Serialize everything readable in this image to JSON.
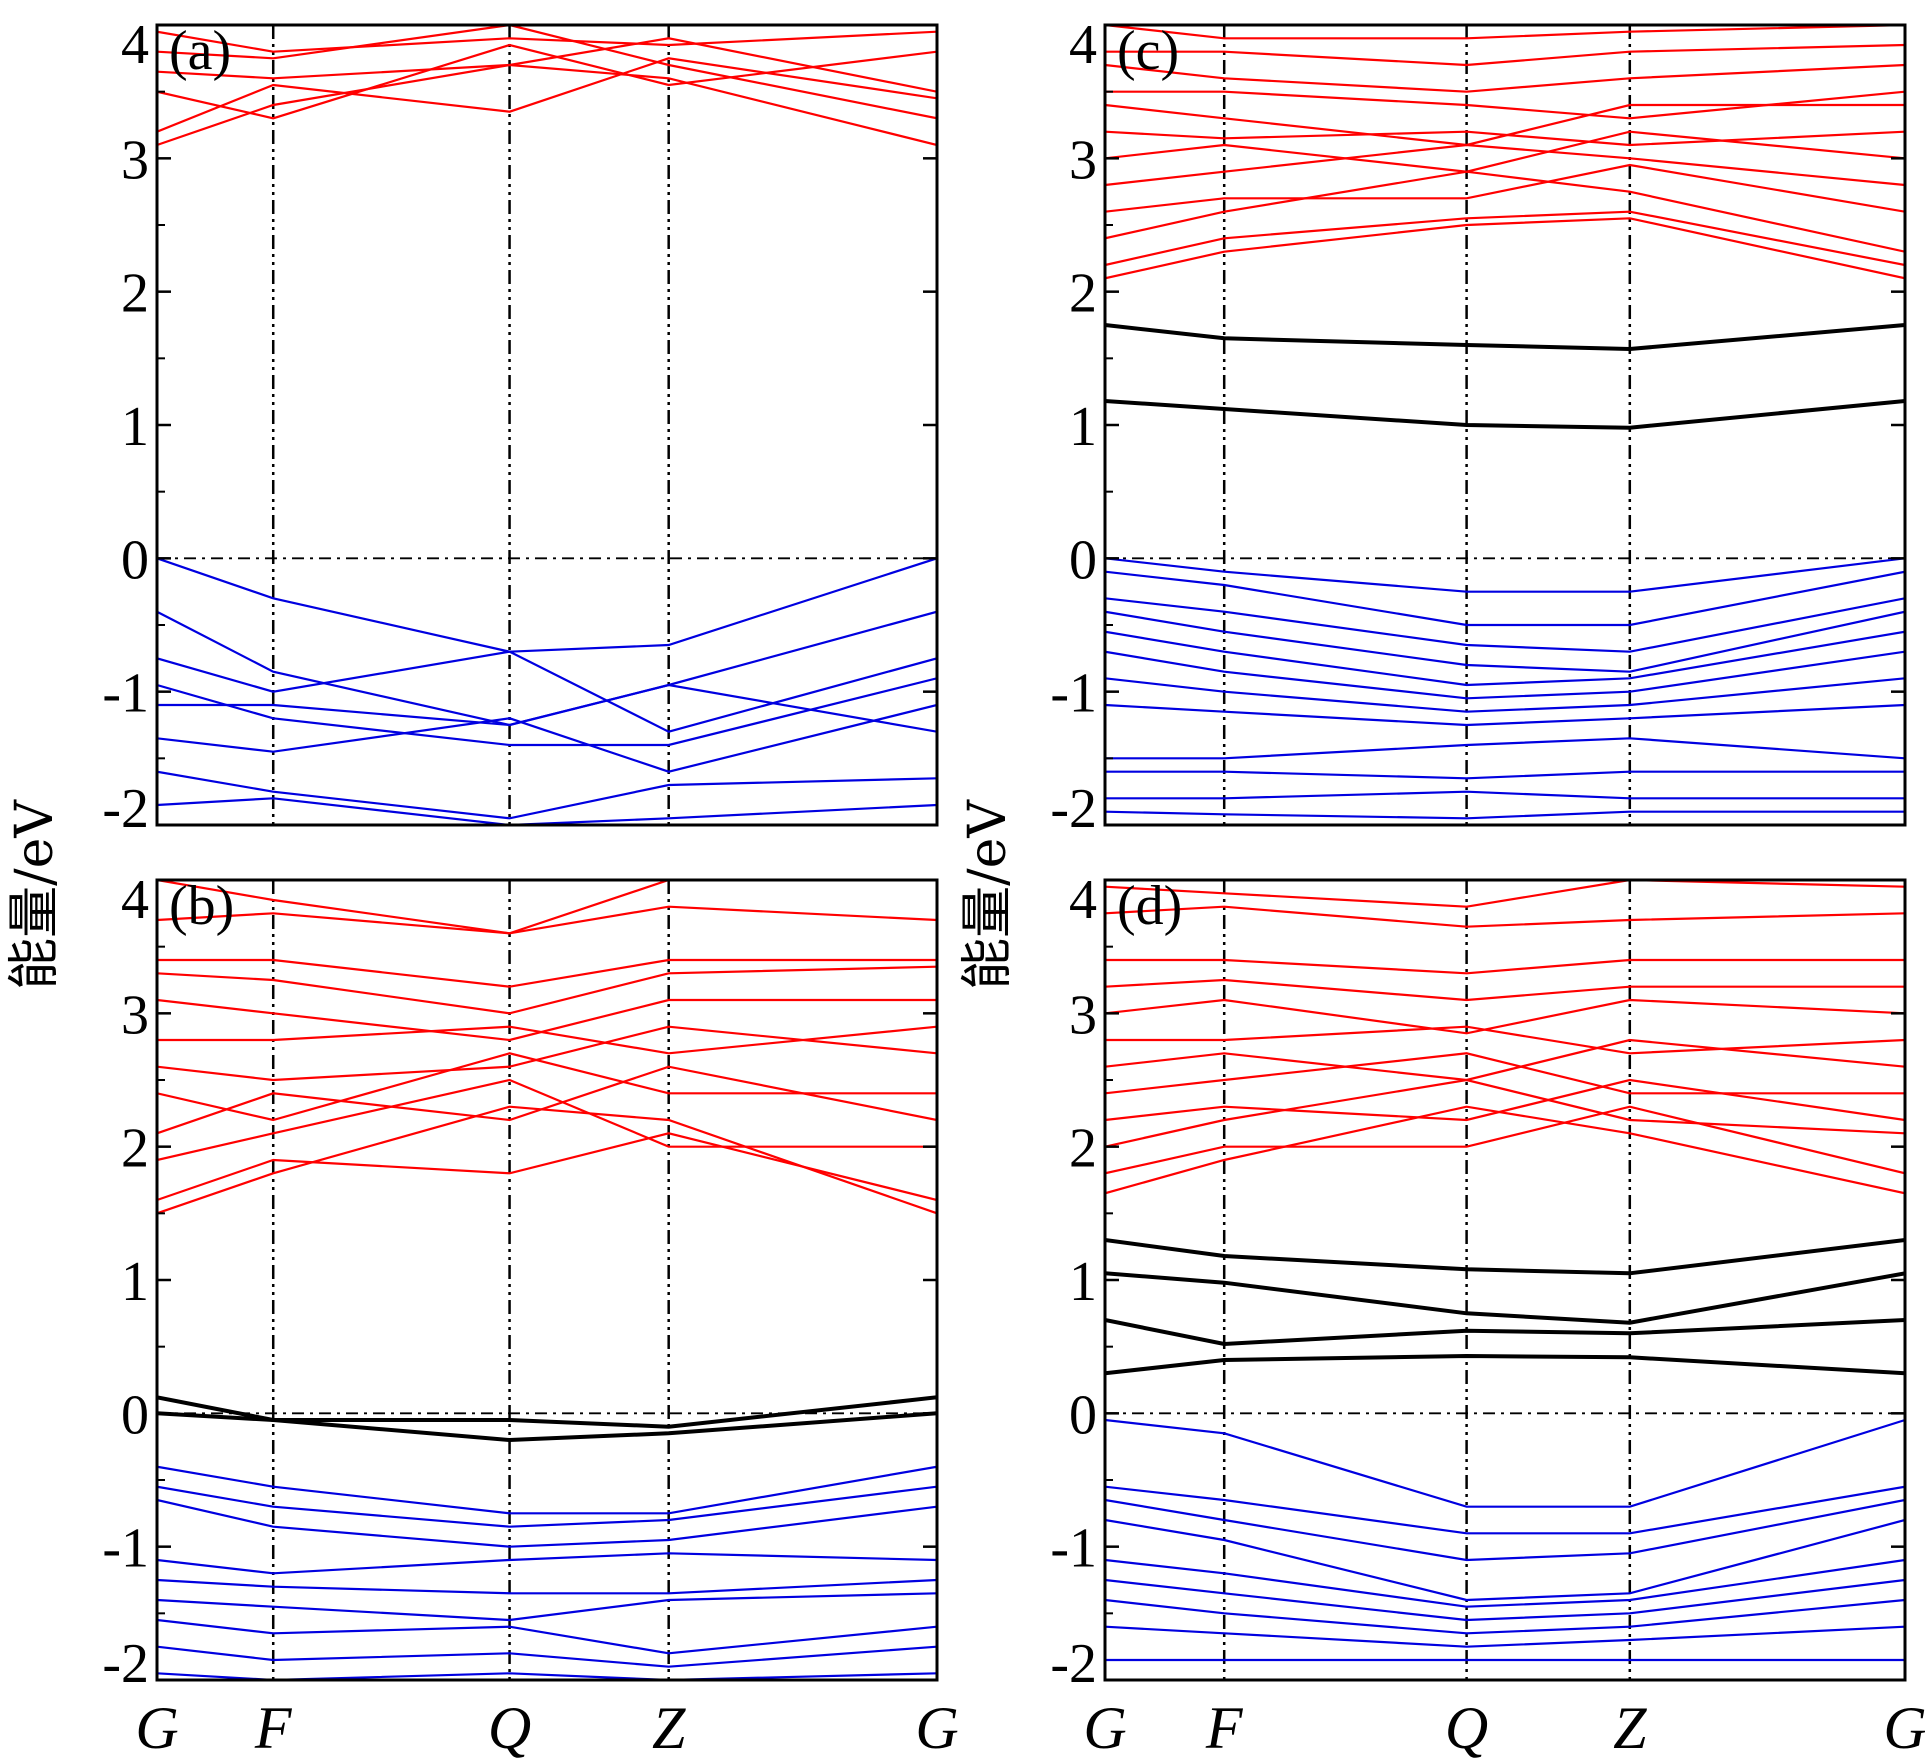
{
  "figure": {
    "ylabel": "能量/eV",
    "kpoint_labels": [
      "G",
      "F",
      "Q",
      "Z",
      "G"
    ]
  },
  "colors": {
    "conduction": "#ff0000",
    "valence": "#0000e0",
    "defect": "#000000"
  },
  "chart_data": [
    {
      "type": "line",
      "panel": "(a)",
      "x": [
        "G",
        "F",
        "Q",
        "Z",
        "G"
      ],
      "ylim": [
        -2,
        4
      ],
      "yticks": [
        -2,
        -1,
        0,
        1,
        2,
        3,
        4
      ],
      "fermi_level": 0,
      "series": [
        {
          "band": "conduction",
          "values": [
            3.1,
            3.4,
            3.7,
            3.6,
            3.1
          ]
        },
        {
          "band": "conduction",
          "values": [
            3.2,
            3.55,
            3.35,
            3.75,
            3.45
          ]
        },
        {
          "band": "conduction",
          "values": [
            3.5,
            3.3,
            3.85,
            3.55,
            3.8
          ]
        },
        {
          "band": "conduction",
          "values": [
            3.65,
            3.6,
            3.7,
            3.9,
            3.5
          ]
        },
        {
          "band": "conduction",
          "values": [
            3.8,
            3.75,
            4.0,
            3.7,
            3.3
          ]
        },
        {
          "band": "conduction",
          "values": [
            3.95,
            3.8,
            3.9,
            3.85,
            3.95
          ]
        },
        {
          "band": "valence",
          "values": [
            0.0,
            -0.3,
            -0.7,
            -0.65,
            0.0
          ]
        },
        {
          "band": "valence",
          "values": [
            -0.4,
            -0.85,
            -1.25,
            -0.95,
            -0.4
          ]
        },
        {
          "band": "valence",
          "values": [
            -0.75,
            -1.0,
            -0.7,
            -1.3,
            -0.75
          ]
        },
        {
          "band": "valence",
          "values": [
            -0.95,
            -1.2,
            -1.4,
            -1.4,
            -0.9
          ]
        },
        {
          "band": "valence",
          "values": [
            -1.1,
            -1.1,
            -1.25,
            -0.95,
            -1.3
          ]
        },
        {
          "band": "valence",
          "values": [
            -1.35,
            -1.45,
            -1.2,
            -1.6,
            -1.1
          ]
        },
        {
          "band": "valence",
          "values": [
            -1.6,
            -1.75,
            -1.95,
            -1.7,
            -1.65
          ]
        },
        {
          "band": "valence",
          "values": [
            -1.85,
            -1.8,
            -2.0,
            -1.95,
            -1.85
          ]
        }
      ]
    },
    {
      "type": "line",
      "panel": "(b)",
      "x": [
        "G",
        "F",
        "Q",
        "Z",
        "G"
      ],
      "ylim": [
        -2,
        4
      ],
      "yticks": [
        -2,
        -1,
        0,
        1,
        2,
        3,
        4
      ],
      "fermi_level": 0,
      "series": [
        {
          "band": "conduction",
          "values": [
            1.5,
            1.8,
            2.3,
            2.2,
            1.5
          ]
        },
        {
          "band": "conduction",
          "values": [
            1.6,
            1.9,
            1.8,
            2.1,
            1.6
          ]
        },
        {
          "band": "conduction",
          "values": [
            1.9,
            2.1,
            2.5,
            2.0,
            2.0
          ]
        },
        {
          "band": "conduction",
          "values": [
            2.1,
            2.4,
            2.2,
            2.6,
            2.2
          ]
        },
        {
          "band": "conduction",
          "values": [
            2.4,
            2.2,
            2.7,
            2.4,
            2.4
          ]
        },
        {
          "band": "conduction",
          "values": [
            2.6,
            2.5,
            2.6,
            2.9,
            2.7
          ]
        },
        {
          "band": "conduction",
          "values": [
            2.8,
            2.8,
            2.9,
            2.7,
            2.9
          ]
        },
        {
          "band": "conduction",
          "values": [
            3.1,
            3.0,
            2.8,
            3.1,
            3.1
          ]
        },
        {
          "band": "conduction",
          "values": [
            3.3,
            3.25,
            3.0,
            3.3,
            3.35
          ]
        },
        {
          "band": "conduction",
          "values": [
            3.4,
            3.4,
            3.2,
            3.4,
            3.4
          ]
        },
        {
          "band": "conduction",
          "values": [
            3.7,
            3.75,
            3.6,
            3.8,
            3.7
          ]
        },
        {
          "band": "conduction",
          "values": [
            4.0,
            3.85,
            3.6,
            4.0,
            4.0
          ]
        },
        {
          "band": "defect",
          "values": [
            0.12,
            -0.05,
            -0.05,
            -0.1,
            0.12
          ]
        },
        {
          "band": "defect",
          "values": [
            0.0,
            -0.05,
            -0.2,
            -0.15,
            0.0
          ]
        },
        {
          "band": "valence",
          "values": [
            -0.4,
            -0.55,
            -0.75,
            -0.75,
            -0.4
          ]
        },
        {
          "band": "valence",
          "values": [
            -0.55,
            -0.7,
            -0.85,
            -0.8,
            -0.55
          ]
        },
        {
          "band": "valence",
          "values": [
            -0.65,
            -0.85,
            -1.0,
            -0.95,
            -0.7
          ]
        },
        {
          "band": "valence",
          "values": [
            -1.1,
            -1.2,
            -1.1,
            -1.05,
            -1.1
          ]
        },
        {
          "band": "valence",
          "values": [
            -1.25,
            -1.3,
            -1.35,
            -1.35,
            -1.25
          ]
        },
        {
          "band": "valence",
          "values": [
            -1.4,
            -1.45,
            -1.55,
            -1.4,
            -1.35
          ]
        },
        {
          "band": "valence",
          "values": [
            -1.55,
            -1.65,
            -1.6,
            -1.8,
            -1.6
          ]
        },
        {
          "band": "valence",
          "values": [
            -1.75,
            -1.85,
            -1.8,
            -1.9,
            -1.75
          ]
        },
        {
          "band": "valence",
          "values": [
            -1.95,
            -2.0,
            -1.95,
            -2.0,
            -1.95
          ]
        }
      ]
    },
    {
      "type": "line",
      "panel": "(c)",
      "x": [
        "G",
        "F",
        "Q",
        "Z",
        "G"
      ],
      "ylim": [
        -2,
        4
      ],
      "yticks": [
        -2,
        -1,
        0,
        1,
        2,
        3,
        4
      ],
      "fermi_level": 0,
      "series": [
        {
          "band": "conduction",
          "values": [
            2.1,
            2.3,
            2.5,
            2.55,
            2.1
          ]
        },
        {
          "band": "conduction",
          "values": [
            2.2,
            2.4,
            2.55,
            2.6,
            2.2
          ]
        },
        {
          "band": "conduction",
          "values": [
            2.4,
            2.6,
            2.9,
            2.75,
            2.3
          ]
        },
        {
          "band": "conduction",
          "values": [
            2.6,
            2.7,
            2.7,
            2.95,
            2.6
          ]
        },
        {
          "band": "conduction",
          "values": [
            2.8,
            2.9,
            3.1,
            3.0,
            2.8
          ]
        },
        {
          "band": "conduction",
          "values": [
            3.0,
            3.1,
            2.9,
            3.2,
            3.0
          ]
        },
        {
          "band": "conduction",
          "values": [
            3.2,
            3.15,
            3.2,
            3.1,
            3.2
          ]
        },
        {
          "band": "conduction",
          "values": [
            3.4,
            3.3,
            3.1,
            3.4,
            3.4
          ]
        },
        {
          "band": "conduction",
          "values": [
            3.5,
            3.5,
            3.4,
            3.3,
            3.5
          ]
        },
        {
          "band": "conduction",
          "values": [
            3.7,
            3.6,
            3.5,
            3.6,
            3.7
          ]
        },
        {
          "band": "conduction",
          "values": [
            3.8,
            3.8,
            3.7,
            3.8,
            3.85
          ]
        },
        {
          "band": "conduction",
          "values": [
            4.0,
            3.9,
            3.9,
            3.95,
            4.0
          ]
        },
        {
          "band": "defect",
          "values": [
            1.75,
            1.65,
            1.6,
            1.57,
            1.75
          ]
        },
        {
          "band": "defect",
          "values": [
            1.18,
            1.12,
            1.0,
            0.98,
            1.18
          ]
        },
        {
          "band": "valence",
          "values": [
            0.0,
            -0.1,
            -0.25,
            -0.25,
            0.0
          ]
        },
        {
          "band": "valence",
          "values": [
            -0.1,
            -0.2,
            -0.5,
            -0.5,
            -0.1
          ]
        },
        {
          "band": "valence",
          "values": [
            -0.3,
            -0.4,
            -0.65,
            -0.7,
            -0.3
          ]
        },
        {
          "band": "valence",
          "values": [
            -0.4,
            -0.55,
            -0.8,
            -0.85,
            -0.4
          ]
        },
        {
          "band": "valence",
          "values": [
            -0.55,
            -0.7,
            -0.95,
            -0.9,
            -0.55
          ]
        },
        {
          "band": "valence",
          "values": [
            -0.7,
            -0.85,
            -1.05,
            -1.0,
            -0.7
          ]
        },
        {
          "band": "valence",
          "values": [
            -0.9,
            -1.0,
            -1.15,
            -1.1,
            -0.9
          ]
        },
        {
          "band": "valence",
          "values": [
            -1.1,
            -1.15,
            -1.25,
            -1.2,
            -1.1
          ]
        },
        {
          "band": "valence",
          "values": [
            -1.5,
            -1.5,
            -1.4,
            -1.35,
            -1.5
          ]
        },
        {
          "band": "valence",
          "values": [
            -1.6,
            -1.6,
            -1.65,
            -1.6,
            -1.6
          ]
        },
        {
          "band": "valence",
          "values": [
            -1.8,
            -1.8,
            -1.75,
            -1.8,
            -1.8
          ]
        },
        {
          "band": "valence",
          "values": [
            -1.9,
            -1.92,
            -1.95,
            -1.9,
            -1.9
          ]
        },
        {
          "band": "valence",
          "values": [
            -2.0,
            -2.0,
            -2.0,
            -2.0,
            -2.0
          ]
        }
      ]
    },
    {
      "type": "line",
      "panel": "(d)",
      "x": [
        "G",
        "F",
        "Q",
        "Z",
        "G"
      ],
      "ylim": [
        -2,
        4
      ],
      "yticks": [
        -2,
        -1,
        0,
        1,
        2,
        3,
        4
      ],
      "fermi_level": 0,
      "series": [
        {
          "band": "conduction",
          "values": [
            1.65,
            1.9,
            2.3,
            2.1,
            1.65
          ]
        },
        {
          "band": "conduction",
          "values": [
            1.8,
            2.0,
            2.0,
            2.3,
            1.8
          ]
        },
        {
          "band": "conduction",
          "values": [
            2.0,
            2.2,
            2.5,
            2.2,
            2.1
          ]
        },
        {
          "band": "conduction",
          "values": [
            2.2,
            2.3,
            2.2,
            2.5,
            2.2
          ]
        },
        {
          "band": "conduction",
          "values": [
            2.4,
            2.5,
            2.7,
            2.4,
            2.4
          ]
        },
        {
          "band": "conduction",
          "values": [
            2.6,
            2.7,
            2.5,
            2.8,
            2.6
          ]
        },
        {
          "band": "conduction",
          "values": [
            2.8,
            2.8,
            2.9,
            2.7,
            2.8
          ]
        },
        {
          "band": "conduction",
          "values": [
            3.0,
            3.1,
            2.85,
            3.1,
            3.0
          ]
        },
        {
          "band": "conduction",
          "values": [
            3.2,
            3.25,
            3.1,
            3.2,
            3.2
          ]
        },
        {
          "band": "conduction",
          "values": [
            3.4,
            3.4,
            3.3,
            3.4,
            3.4
          ]
        },
        {
          "band": "conduction",
          "values": [
            3.75,
            3.8,
            3.65,
            3.7,
            3.75
          ]
        },
        {
          "band": "conduction",
          "values": [
            3.95,
            3.9,
            3.8,
            4.0,
            3.95
          ]
        },
        {
          "band": "defect",
          "values": [
            1.3,
            1.18,
            1.08,
            1.05,
            1.3
          ]
        },
        {
          "band": "defect",
          "values": [
            1.05,
            0.98,
            0.75,
            0.68,
            1.05
          ]
        },
        {
          "band": "defect",
          "values": [
            0.7,
            0.52,
            0.62,
            0.6,
            0.7
          ]
        },
        {
          "band": "defect",
          "values": [
            0.3,
            0.4,
            0.43,
            0.42,
            0.3
          ]
        },
        {
          "band": "valence",
          "values": [
            -0.05,
            -0.15,
            -0.7,
            -0.7,
            -0.05
          ]
        },
        {
          "band": "valence",
          "values": [
            -0.55,
            -0.65,
            -0.9,
            -0.9,
            -0.55
          ]
        },
        {
          "band": "valence",
          "values": [
            -0.65,
            -0.8,
            -1.1,
            -1.05,
            -0.65
          ]
        },
        {
          "band": "valence",
          "values": [
            -0.8,
            -0.95,
            -1.4,
            -1.35,
            -0.8
          ]
        },
        {
          "band": "valence",
          "values": [
            -1.1,
            -1.2,
            -1.45,
            -1.4,
            -1.1
          ]
        },
        {
          "band": "valence",
          "values": [
            -1.25,
            -1.35,
            -1.55,
            -1.5,
            -1.25
          ]
        },
        {
          "band": "valence",
          "values": [
            -1.4,
            -1.5,
            -1.65,
            -1.6,
            -1.4
          ]
        },
        {
          "band": "valence",
          "values": [
            -1.6,
            -1.65,
            -1.75,
            -1.7,
            -1.6
          ]
        },
        {
          "band": "valence",
          "values": [
            -1.85,
            -1.85,
            -1.85,
            -1.85,
            -1.85
          ]
        }
      ]
    }
  ]
}
